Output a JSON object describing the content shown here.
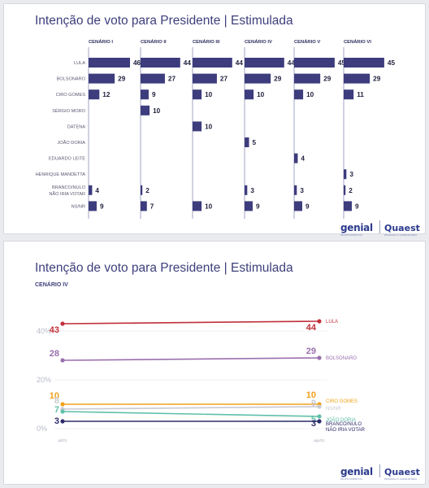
{
  "chart_data": [
    {
      "type": "bar",
      "orientation": "horizontal",
      "title": "Intenção de voto para Presidente | Estimulada",
      "categories": [
        "LULA",
        "BOLSONARO",
        "CIRO GOMES",
        "SÉRGIO MORO",
        "DATENA",
        "JOÃO DORIA",
        "EDUARDO LEITE",
        "HENRIQUE MANDETTA",
        "BRANCO/NULO\nNÃO IRIA VOTAR",
        "NS/NR"
      ],
      "series": [
        {
          "name": "CENÁRIO I",
          "values": [
            46,
            29,
            12,
            null,
            null,
            null,
            null,
            null,
            4,
            9
          ]
        },
        {
          "name": "CENÁRIO II",
          "values": [
            44,
            27,
            9,
            10,
            null,
            null,
            null,
            null,
            2,
            7
          ]
        },
        {
          "name": "CENÁRIO III",
          "values": [
            44,
            27,
            10,
            null,
            10,
            null,
            null,
            null,
            null,
            10
          ]
        },
        {
          "name": "CENÁRIO IV",
          "values": [
            44,
            29,
            10,
            null,
            null,
            5,
            null,
            null,
            3,
            9
          ]
        },
        {
          "name": "CENÁRIO V",
          "values": [
            45,
            29,
            10,
            null,
            null,
            null,
            4,
            null,
            3,
            9
          ]
        },
        {
          "name": "CENÁRIO VI",
          "values": [
            45,
            29,
            11,
            null,
            null,
            null,
            null,
            3,
            2,
            9
          ]
        }
      ],
      "colors": {
        "bar": "#3d3c7d",
        "text": "#5a5a73"
      }
    },
    {
      "type": "line",
      "title": "Intenção de voto para Presidente | Estimulada",
      "subtitle": "CENÁRIO IV",
      "x": [
        "jul/21",
        "ago/21"
      ],
      "ylim": [
        0,
        45
      ],
      "yticks": [
        "0%",
        "20%",
        "40%"
      ],
      "ytick_values": [
        0,
        20,
        40
      ],
      "series": [
        {
          "name": "LULA",
          "values": [
            43,
            44
          ],
          "color": "#c0303a"
        },
        {
          "name": "BOLSONARO",
          "values": [
            28,
            29
          ],
          "color": "#9b6fae"
        },
        {
          "name": "CIRO GOMES",
          "values": [
            10,
            10
          ],
          "color": "#f0a21a"
        },
        {
          "name": "NS/NR",
          "values": [
            8,
            9
          ],
          "color": "#c9cad3"
        },
        {
          "name": "JOÃO DORIA",
          "values": [
            7,
            5
          ],
          "color": "#5fc0a8"
        },
        {
          "name": "BRANCO/NULO\nNÃO IRIA VOTAR",
          "values": [
            3,
            3
          ],
          "color": "#2c2a6b"
        }
      ]
    }
  ],
  "logos": {
    "genial": "genial",
    "genial_sub": "INVESTIMENTOS",
    "quaest": "Quaest",
    "quaest_sub": "PESQUISA E CONSULTORIA"
  }
}
